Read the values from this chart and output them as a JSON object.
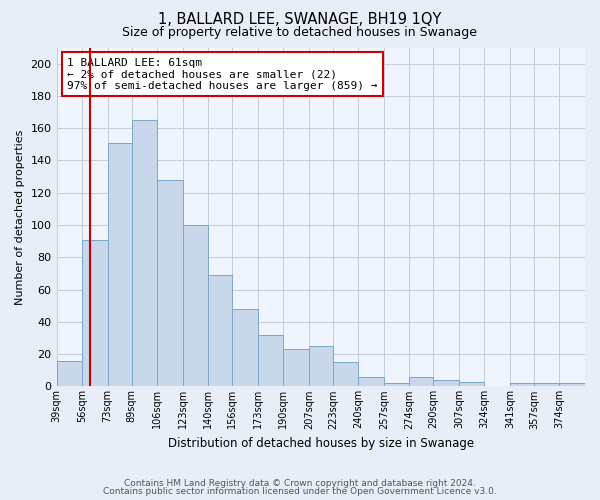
{
  "title": "1, BALLARD LEE, SWANAGE, BH19 1QY",
  "subtitle": "Size of property relative to detached houses in Swanage",
  "xlabel": "Distribution of detached houses by size in Swanage",
  "ylabel": "Number of detached properties",
  "bin_labels": [
    "39sqm",
    "56sqm",
    "73sqm",
    "89sqm",
    "106sqm",
    "123sqm",
    "140sqm",
    "156sqm",
    "173sqm",
    "190sqm",
    "207sqm",
    "223sqm",
    "240sqm",
    "257sqm",
    "274sqm",
    "290sqm",
    "307sqm",
    "324sqm",
    "341sqm",
    "357sqm",
    "374sqm"
  ],
  "bin_edges": [
    39,
    56,
    73,
    89,
    106,
    123,
    140,
    156,
    173,
    190,
    207,
    223,
    240,
    257,
    274,
    290,
    307,
    324,
    341,
    357,
    374,
    391
  ],
  "bar_values": [
    16,
    91,
    151,
    165,
    128,
    100,
    69,
    48,
    32,
    23,
    25,
    15,
    6,
    2,
    6,
    4,
    3,
    0,
    2,
    2,
    2
  ],
  "bar_fill_color": "#c8d8ea",
  "bar_edge_color": "#7ba8c8",
  "vline_x": 61,
  "vline_color": "#cc0000",
  "annotation_text": "1 BALLARD LEE: 61sqm\n← 2% of detached houses are smaller (22)\n97% of semi-detached houses are larger (859) →",
  "annotation_box_edgecolor": "#cc0000",
  "ylim": [
    0,
    210
  ],
  "yticks": [
    0,
    20,
    40,
    60,
    80,
    100,
    120,
    140,
    160,
    180,
    200
  ],
  "background_color": "#e8eef8",
  "plot_bg_color": "#f0f4fc",
  "grid_color": "#c5cdd8",
  "footer_line1": "Contains HM Land Registry data © Crown copyright and database right 2024.",
  "footer_line2": "Contains public sector information licensed under the Open Government Licence v3.0."
}
